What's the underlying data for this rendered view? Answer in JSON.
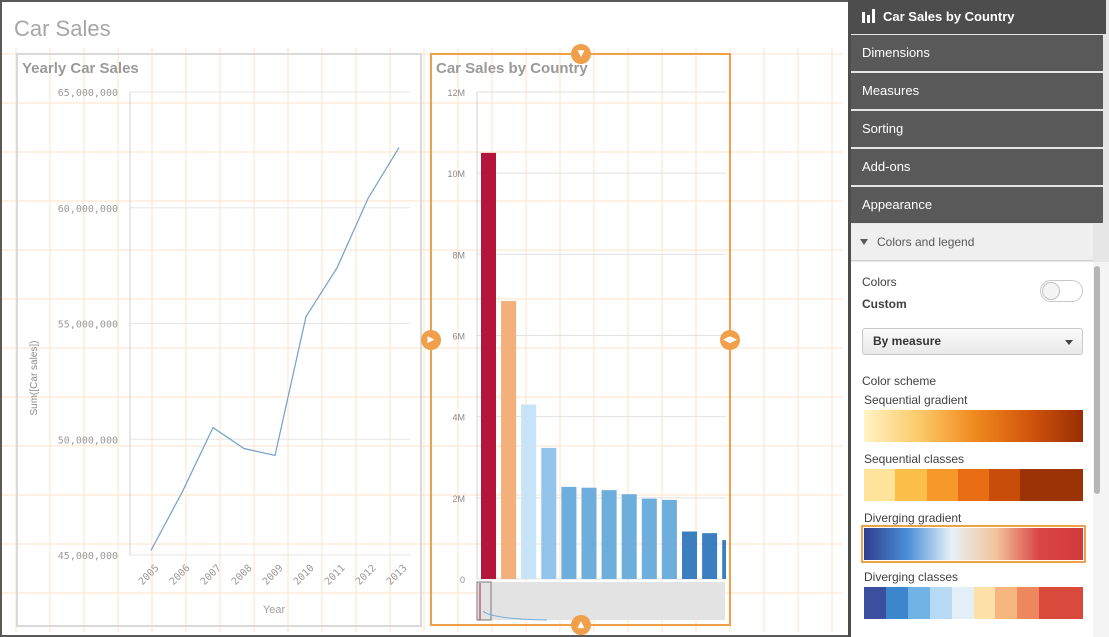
{
  "sheet": {
    "title": "Car Sales"
  },
  "yearly_chart": {
    "title": "Yearly Car Sales",
    "xlabel": "Year",
    "ylabel": "Sum([Car sales])",
    "y_ticks": [
      "65,000,000",
      "60,000,000",
      "55,000,000",
      "50,000,000",
      "45,000,000"
    ],
    "x_ticks": [
      "2005",
      "2006",
      "2007",
      "2008",
      "2009",
      "2010",
      "2011",
      "2012",
      "2013"
    ]
  },
  "country_chart": {
    "title": "Car Sales by Country",
    "y_ticks": [
      "12M",
      "10M",
      "8M",
      "6M",
      "4M",
      "2M",
      "0"
    ]
  },
  "chart_data": [
    {
      "type": "line",
      "title": "Yearly Car Sales",
      "xlabel": "Year",
      "ylabel": "Sum([Car sales])",
      "x": [
        2005,
        2006,
        2007,
        2008,
        2009,
        2010,
        2011,
        2012,
        2013
      ],
      "values": [
        45200000,
        47700000,
        50500000,
        49600000,
        49300000,
        55300000,
        57400000,
        60400000,
        62600000
      ],
      "ylim": [
        45000000,
        65000000
      ],
      "color": "#6fa0cc"
    },
    {
      "type": "bar",
      "title": "Car Sales by Country",
      "values": [
        10500000,
        6850000,
        4300000,
        3230000,
        2270000,
        2250000,
        2190000,
        2090000,
        1980000,
        1950000,
        1170000,
        1130000,
        960000
      ],
      "colors": [
        "#b3163a",
        "#f3b07a",
        "#c6e3f7",
        "#93c5ea",
        "#6eaedd",
        "#6eaedd",
        "#6eaedd",
        "#6eaedd",
        "#6eaedd",
        "#6eaedd",
        "#3b7fc0",
        "#3b7fc0",
        "#3b7fc0"
      ],
      "ylim": [
        0,
        12000000
      ],
      "grid": true
    }
  ],
  "panel": {
    "header": "Car Sales by Country",
    "nav": [
      "Dimensions",
      "Measures",
      "Sorting",
      "Add-ons",
      "Appearance"
    ],
    "section": "Colors and legend",
    "colors_label": "Colors",
    "custom_label": "Custom",
    "dropdown_value": "By measure",
    "color_scheme_label": "Color scheme",
    "schemes": [
      {
        "name": "Sequential gradient",
        "type": "gradient",
        "colors": [
          "#fff4c4",
          "#fcca6a",
          "#f18b20",
          "#d2560c",
          "#9a2d04"
        ]
      },
      {
        "name": "Sequential classes",
        "type": "classes",
        "colors": [
          "#fde49a",
          "#fbbf4a",
          "#f7992a",
          "#e96d15",
          "#c84c0a",
          "#9b3306",
          "#9b3306"
        ]
      },
      {
        "name": "Diverging gradient",
        "type": "gradient",
        "colors": [
          "#2f3f8f",
          "#4b8fd6",
          "#e8f1f8",
          "#f3c59c",
          "#d94545",
          "#d33a3a"
        ],
        "selected": true
      },
      {
        "name": "Diverging classes",
        "type": "classes",
        "colors": [
          "#3b4fa0",
          "#3c86cc",
          "#70b3e4",
          "#b6daf3",
          "#e4f0f8",
          "#fde0a8",
          "#f7b67e",
          "#ef875e",
          "#d94a3d",
          "#d94a3d"
        ]
      }
    ]
  }
}
